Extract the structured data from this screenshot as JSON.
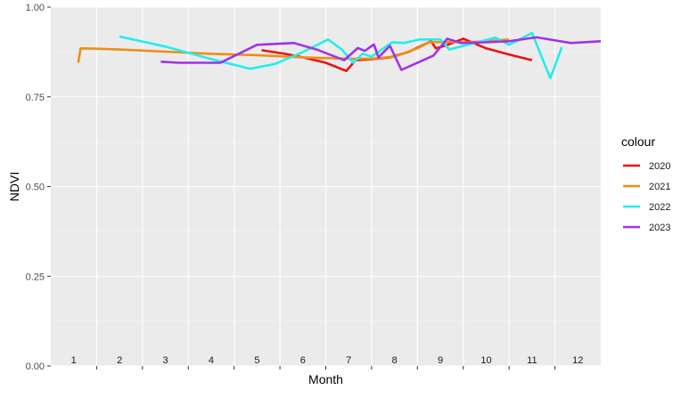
{
  "chart_data": {
    "type": "line",
    "title": "",
    "xlabel": "Month",
    "ylabel": "NDVI",
    "ylim": [
      0,
      1
    ],
    "xlim": [
      0.5,
      12.5
    ],
    "y_ticks": [
      0,
      0.25,
      0.5,
      0.75,
      1
    ],
    "y_tick_labels": [
      "0.00",
      "0.25",
      "0.50",
      "0.75",
      "1.00"
    ],
    "month_labels": [
      "1",
      "2",
      "3",
      "4",
      "5",
      "6",
      "7",
      "8",
      "9",
      "10",
      "11",
      "12"
    ],
    "grid": true,
    "legend": {
      "title": "colour",
      "position": "right"
    },
    "series": [
      {
        "name": "2020",
        "color": "#ee1111",
        "points": [
          [
            5.1,
            0.88
          ],
          [
            5.6,
            0.87
          ],
          [
            6.0,
            0.86
          ],
          [
            6.5,
            0.845
          ],
          [
            6.95,
            0.822
          ],
          [
            7.15,
            0.852
          ],
          [
            7.5,
            0.855
          ],
          [
            7.9,
            0.86
          ],
          [
            8.3,
            0.875
          ],
          [
            8.8,
            0.905
          ],
          [
            8.9,
            0.885
          ],
          [
            9.1,
            0.892
          ],
          [
            9.5,
            0.912
          ],
          [
            10.0,
            0.885
          ],
          [
            10.5,
            0.868
          ],
          [
            11.0,
            0.852
          ]
        ]
      },
      {
        "name": "2021",
        "color": "#f28c13",
        "points": [
          [
            1.1,
            0.845
          ],
          [
            1.15,
            0.885
          ],
          [
            1.5,
            0.884
          ],
          [
            2.0,
            0.882
          ],
          [
            3.0,
            0.876
          ],
          [
            4.0,
            0.87
          ],
          [
            5.0,
            0.866
          ],
          [
            6.0,
            0.86
          ],
          [
            7.0,
            0.856
          ],
          [
            7.5,
            0.856
          ],
          [
            8.0,
            0.862
          ],
          [
            8.5,
            0.885
          ],
          [
            8.75,
            0.902
          ],
          [
            9.2,
            0.903
          ],
          [
            9.6,
            0.902
          ],
          [
            10.0,
            0.905
          ],
          [
            10.5,
            0.91
          ]
        ]
      },
      {
        "name": "2022",
        "color": "#22eeee",
        "points": [
          [
            2.0,
            0.918
          ],
          [
            3.0,
            0.89
          ],
          [
            4.0,
            0.855
          ],
          [
            4.85,
            0.828
          ],
          [
            5.4,
            0.842
          ],
          [
            6.0,
            0.875
          ],
          [
            6.55,
            0.91
          ],
          [
            6.85,
            0.882
          ],
          [
            7.1,
            0.845
          ],
          [
            7.3,
            0.87
          ],
          [
            7.5,
            0.862
          ],
          [
            7.95,
            0.902
          ],
          [
            8.2,
            0.9
          ],
          [
            8.55,
            0.91
          ],
          [
            9.0,
            0.91
          ],
          [
            9.2,
            0.882
          ],
          [
            9.6,
            0.895
          ],
          [
            10.2,
            0.915
          ],
          [
            10.5,
            0.895
          ],
          [
            11.0,
            0.928
          ],
          [
            11.4,
            0.802
          ],
          [
            11.65,
            0.888
          ]
        ]
      },
      {
        "name": "2023",
        "color": "#a032e8",
        "points": [
          [
            2.9,
            0.848
          ],
          [
            3.3,
            0.845
          ],
          [
            4.2,
            0.845
          ],
          [
            5.0,
            0.895
          ],
          [
            5.8,
            0.9
          ],
          [
            6.3,
            0.882
          ],
          [
            6.9,
            0.852
          ],
          [
            7.2,
            0.886
          ],
          [
            7.35,
            0.878
          ],
          [
            7.55,
            0.896
          ],
          [
            7.65,
            0.86
          ],
          [
            7.9,
            0.892
          ],
          [
            8.15,
            0.825
          ],
          [
            8.85,
            0.865
          ],
          [
            9.15,
            0.912
          ],
          [
            9.45,
            0.9
          ],
          [
            10.0,
            0.902
          ],
          [
            10.5,
            0.905
          ],
          [
            11.1,
            0.916
          ],
          [
            11.85,
            0.9
          ],
          [
            12.5,
            0.905
          ]
        ]
      }
    ]
  }
}
